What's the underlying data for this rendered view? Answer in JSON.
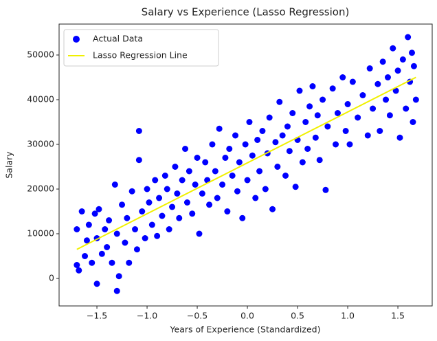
{
  "chart_data": {
    "type": "scatter",
    "title": "Salary vs Experience (Lasso Regression)",
    "x_label": "Years of Experience (Standardized)",
    "y_label": "Salary",
    "xlim": [
      -1.877,
      1.842
    ],
    "ylim": [
      -6154,
      56923
    ],
    "xticks": [
      {
        "value": -1.5,
        "label": "−1.5"
      },
      {
        "value": -1.0,
        "label": "−1.0"
      },
      {
        "value": -0.5,
        "label": "−0.5"
      },
      {
        "value": 0,
        "label": "0.0"
      },
      0.5,
      {
        "value": 1,
        "label": "1.0"
      },
      1.5
    ],
    "yticks": [
      0,
      10000,
      20000,
      30000,
      40000,
      50000
    ],
    "grid": false,
    "legend": "upper left",
    "series": [
      {
        "name": "Actual Data",
        "kind": "scatter",
        "color": "#0000ff",
        "x": [
          -1.7,
          -1.7,
          -1.68,
          -1.65,
          -1.62,
          -1.6,
          -1.58,
          -1.55,
          -1.52,
          -1.5,
          -1.5,
          -1.48,
          -1.45,
          -1.42,
          -1.4,
          -1.38,
          -1.35,
          -1.32,
          -1.3,
          -1.3,
          -1.28,
          -1.25,
          -1.22,
          -1.2,
          -1.18,
          -1.15,
          -1.12,
          -1.1,
          -1.08,
          -1.08,
          -1.05,
          -1.02,
          -1.0,
          -0.98,
          -0.95,
          -0.92,
          -0.9,
          -0.88,
          -0.85,
          -0.82,
          -0.8,
          -0.78,
          -0.75,
          -0.72,
          -0.7,
          -0.68,
          -0.65,
          -0.62,
          -0.6,
          -0.58,
          -0.55,
          -0.52,
          -0.5,
          -0.48,
          -0.45,
          -0.42,
          -0.4,
          -0.38,
          -0.35,
          -0.32,
          -0.3,
          -0.28,
          -0.25,
          -0.22,
          -0.2,
          -0.18,
          -0.15,
          -0.12,
          -0.1,
          -0.08,
          -0.05,
          -0.02,
          0.0,
          0.02,
          0.05,
          0.08,
          0.1,
          0.12,
          0.15,
          0.18,
          0.2,
          0.22,
          0.25,
          0.28,
          0.3,
          0.32,
          0.35,
          0.38,
          0.4,
          0.42,
          0.45,
          0.48,
          0.5,
          0.52,
          0.55,
          0.58,
          0.6,
          0.62,
          0.65,
          0.68,
          0.7,
          0.72,
          0.75,
          0.78,
          0.8,
          0.85,
          0.88,
          0.9,
          0.95,
          0.98,
          1.0,
          1.02,
          1.05,
          1.1,
          1.15,
          1.2,
          1.22,
          1.25,
          1.3,
          1.32,
          1.35,
          1.38,
          1.4,
          1.42,
          1.45,
          1.48,
          1.5,
          1.52,
          1.55,
          1.58,
          1.6,
          1.62,
          1.64,
          1.65,
          1.66,
          1.68
        ],
        "values": [
          3000,
          11000,
          1800,
          15000,
          5000,
          8500,
          12000,
          3500,
          14500,
          -1200,
          9000,
          15500,
          5500,
          11000,
          7000,
          13000,
          3500,
          21000,
          -2800,
          10000,
          500,
          16500,
          8000,
          13500,
          3500,
          19500,
          11000,
          6500,
          33000,
          26500,
          15000,
          9000,
          20000,
          17000,
          12000,
          22000,
          9500,
          18000,
          14000,
          23000,
          20000,
          11000,
          16000,
          25000,
          19000,
          13500,
          22000,
          29000,
          17000,
          24000,
          14500,
          21000,
          27000,
          10000,
          19000,
          26000,
          22000,
          16500,
          30000,
          24000,
          18000,
          33500,
          21000,
          27000,
          15000,
          29000,
          23000,
          32000,
          19500,
          26000,
          13500,
          30000,
          22000,
          35000,
          27500,
          18000,
          31000,
          24000,
          33000,
          20000,
          28000,
          36000,
          15500,
          30500,
          25000,
          39500,
          32000,
          23000,
          34000,
          28500,
          37000,
          20500,
          31000,
          42000,
          26000,
          35000,
          29000,
          38500,
          43000,
          31500,
          36500,
          26500,
          40000,
          19800,
          34000,
          42500,
          30000,
          37000,
          45000,
          33000,
          39000,
          30000,
          44000,
          36000,
          41000,
          32000,
          47000,
          38000,
          43500,
          33000,
          48500,
          40000,
          45000,
          36500,
          51500,
          42000,
          46500,
          31500,
          49000,
          38000,
          54000,
          44000,
          50500,
          35000,
          47500,
          40000
        ]
      },
      {
        "name": "Lasso Regression Line",
        "kind": "line",
        "color": "#f0f000",
        "x": [
          -1.7,
          1.68
        ],
        "values": [
          6500,
          45000
        ]
      }
    ]
  }
}
